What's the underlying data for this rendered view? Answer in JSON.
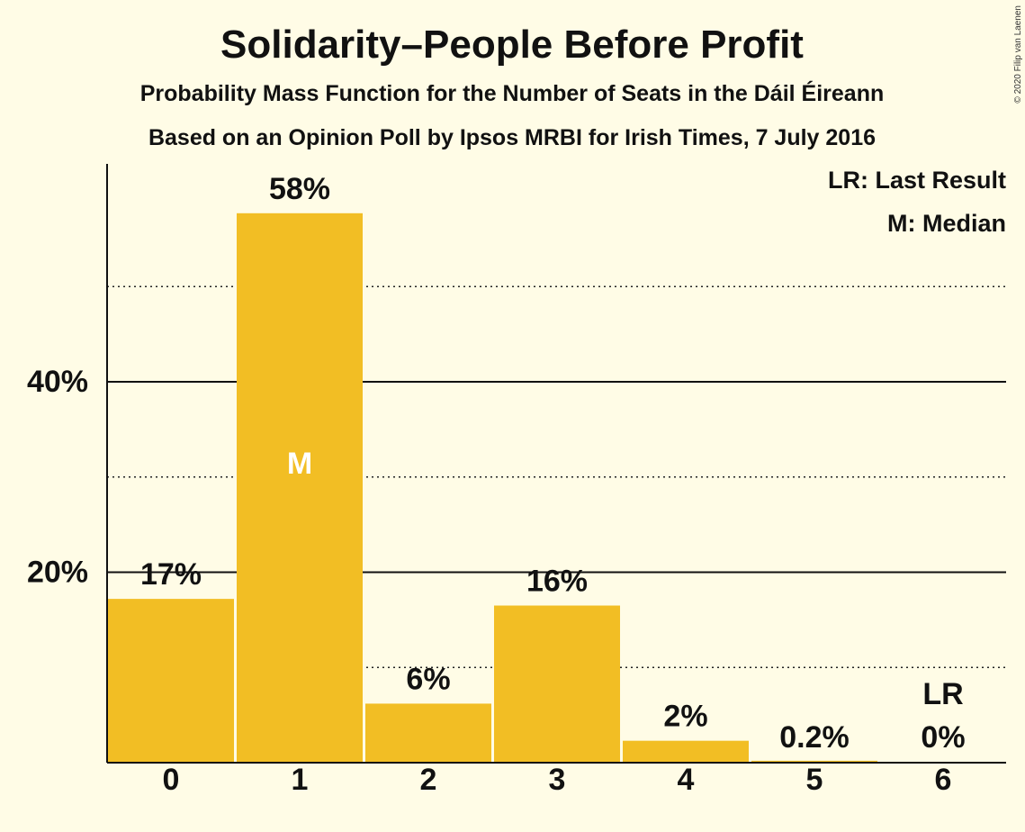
{
  "copyright": "© 2020 Filip van Laenen",
  "chart_data": {
    "type": "bar",
    "title": "Solidarity–People Before Profit",
    "subtitle": "Probability Mass Function for the Number of Seats in the Dáil Éireann",
    "subtitle2": "Based on an Opinion Poll by Ipsos MRBI for Irish Times, 7 July 2016",
    "xlabel": "",
    "ylabel": "",
    "categories": [
      "0",
      "1",
      "2",
      "3",
      "4",
      "5",
      "6"
    ],
    "values": [
      17.2,
      57.7,
      6.2,
      16.5,
      2.3,
      0.2,
      0
    ],
    "value_labels": [
      "17%",
      "58%",
      "6%",
      "16%",
      "2%",
      "0.2%",
      "0%"
    ],
    "ylim": [
      0,
      63
    ],
    "major_ticks": [
      20,
      40
    ],
    "major_tick_labels": [
      "20%",
      "40%"
    ],
    "minor_gridlines": [
      10,
      30,
      50
    ],
    "grid": true,
    "bar_color": "#f2be24",
    "median": {
      "category": "1",
      "label": "M"
    },
    "last_result": {
      "category": "6",
      "label": "LR"
    },
    "legend": {
      "placement": "top-right",
      "items": [
        "LR: Last Result",
        "M: Median"
      ]
    }
  }
}
